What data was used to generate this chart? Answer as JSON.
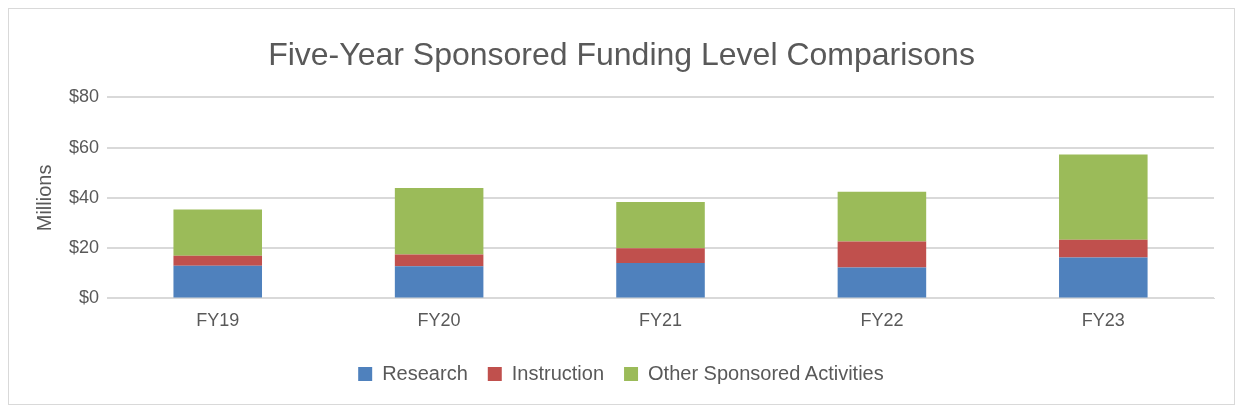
{
  "chart_data": {
    "type": "bar",
    "title": "Five-Year Sponsored Funding Level Comparisons",
    "ylabel": "Millions",
    "categories": [
      "FY19",
      "FY20",
      "FY21",
      "FY22",
      "FY23"
    ],
    "stacked": true,
    "series": [
      {
        "name": "Research",
        "color": "#4f81bd",
        "values": [
          13,
          12.8,
          14.1,
          12.3,
          16.3
        ]
      },
      {
        "name": "Instruction",
        "color": "#c0504d",
        "values": [
          4,
          4.7,
          5.9,
          10.3,
          7
        ]
      },
      {
        "name": "Other Sponsored Activities",
        "color": "#9bbb59",
        "values": [
          18.4,
          26.4,
          18.4,
          19.8,
          34
        ]
      }
    ],
    "ylim": [
      0,
      80
    ],
    "yticks": [
      {
        "value": 0,
        "label": "$0"
      },
      {
        "value": 20,
        "label": "$20"
      },
      {
        "value": 40,
        "label": "$40"
      },
      {
        "value": 60,
        "label": "$60"
      },
      {
        "value": 80,
        "label": "$80"
      }
    ],
    "grid": "y",
    "legend": "bottom"
  }
}
